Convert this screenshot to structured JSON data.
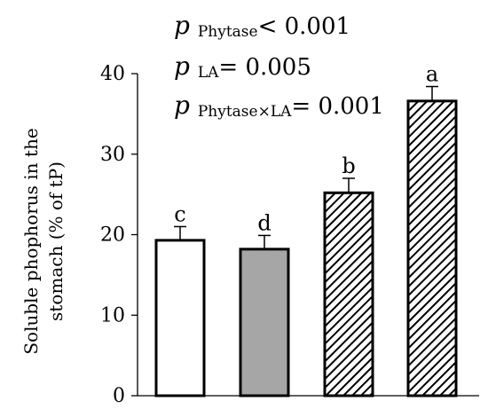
{
  "chart_data": {
    "type": "bar",
    "title": "",
    "xlabel": "",
    "ylabel": "Soluble phophorus in the stomach (% of tP)",
    "ylabel_lines": [
      "Soluble phophorus in the",
      "stomach (% of tP)"
    ],
    "ylim": [
      0,
      40
    ],
    "yticks": [
      0,
      10,
      20,
      30,
      40
    ],
    "grid": false,
    "legend": "none",
    "bars": [
      {
        "value": 19.3,
        "error": 1.7,
        "label": "c",
        "fill": "white"
      },
      {
        "value": 18.2,
        "error": 1.7,
        "label": "d",
        "fill": "gray"
      },
      {
        "value": 25.2,
        "error": 1.8,
        "label": "b",
        "fill": "hatch"
      },
      {
        "value": 36.6,
        "error": 1.8,
        "label": "a",
        "fill": "hatch"
      }
    ],
    "annotations": [
      {
        "p": "p",
        "sub": "Phytase",
        "text": "< 0.001"
      },
      {
        "p": "p",
        "sub": "LA",
        "text": "= 0.005"
      },
      {
        "p": "p",
        "sub": "Phytase×LA",
        "text": "= 0.001"
      }
    ]
  },
  "colors": {
    "white": "#ffffff",
    "gray": "#a6a6a6",
    "hatch_stroke": "#000000",
    "axis": "#000000"
  }
}
